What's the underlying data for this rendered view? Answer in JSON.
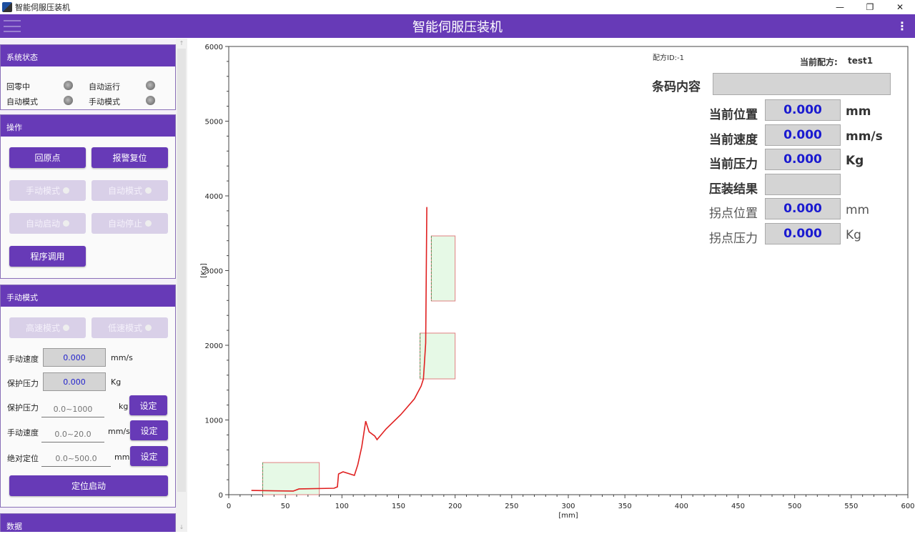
{
  "window": {
    "title": "智能伺服压装机",
    "controls": [
      "—",
      "❐",
      "✕"
    ]
  },
  "header": {
    "title": "智能伺服压装机"
  },
  "status": {
    "title": "系统状态",
    "items": [
      {
        "label": "回零中"
      },
      {
        "label": "自动运行"
      },
      {
        "label": "自动模式"
      },
      {
        "label": "手动模式"
      }
    ]
  },
  "ops": {
    "title": "操作",
    "home": "回原点",
    "alarm_reset": "报警复位",
    "manual_mode": "手动模式",
    "auto_mode": "自动模式",
    "auto_start": "自动启动",
    "auto_stop": "自动停止",
    "program": "程序调用"
  },
  "manual": {
    "title": "手动模式",
    "high_speed": "高速模式",
    "low_speed": "低速模式",
    "speed_label": "手动速度",
    "speed_value": "0.000",
    "speed_unit": "mm/s",
    "protect_label": "保护压力",
    "protect_value": "0.000",
    "protect_unit": "Kg",
    "set_rows": [
      {
        "label": "保护压力",
        "placeholder": "0.0~1000",
        "unit": "kg",
        "button": "设定"
      },
      {
        "label": "手动速度",
        "placeholder": "0.0~20.0",
        "unit": "mm/s",
        "button": "设定"
      },
      {
        "label": "绝对定位",
        "placeholder": "0.0~500.0",
        "unit": "mm",
        "button": "设定"
      }
    ],
    "position_start": "定位启动"
  },
  "data_group": {
    "title": "数据"
  },
  "info": {
    "recipe_id": "配方ID:-1",
    "current_recipe_label": "当前配方:",
    "current_recipe": "test1",
    "barcode_label": "条码内容",
    "barcode_value": "",
    "rows": [
      {
        "label": "当前位置",
        "value": "0.000",
        "unit": "mm"
      },
      {
        "label": "当前速度",
        "value": "0.000",
        "unit": "mm/s"
      },
      {
        "label": "当前压力",
        "value": "0.000",
        "unit": "Kg"
      },
      {
        "label": "压装结果",
        "value": "",
        "unit": ""
      },
      {
        "label": "拐点位置",
        "value": "0.000",
        "unit": "mm"
      },
      {
        "label": "拐点压力",
        "value": "0.000",
        "unit": "Kg"
      }
    ]
  },
  "chart_data": {
    "type": "line",
    "xlabel": "[mm]",
    "ylabel": "[Kg]",
    "xlim": [
      0,
      600
    ],
    "ylim": [
      0,
      6000
    ],
    "xticks": [
      0,
      50,
      100,
      150,
      200,
      250,
      300,
      350,
      400,
      450,
      500,
      550,
      600
    ],
    "yticks": [
      0,
      1000,
      2000,
      3000,
      4000,
      5000,
      6000
    ],
    "line_color": "#e02020",
    "series": [
      {
        "x": [
          20,
          57,
          62,
          93,
          96,
          97,
          101,
          111,
          114,
          117.5,
          121,
          124,
          129,
          131,
          139,
          152,
          164,
          170,
          172,
          174,
          175
        ],
        "y": [
          57,
          48,
          77,
          86,
          105,
          277,
          306,
          258,
          400,
          640,
          985,
          842,
          785,
          737,
          880,
          1072,
          1282,
          1455,
          1550,
          2030,
          3850
        ]
      }
    ],
    "windows": [
      {
        "x": [
          30,
          80
        ],
        "y": [
          0,
          430
        ]
      },
      {
        "x": [
          169,
          200
        ],
        "y": [
          1550,
          2163
        ]
      },
      {
        "x": [
          179,
          200
        ],
        "y": [
          2593,
          3464
        ]
      }
    ]
  }
}
